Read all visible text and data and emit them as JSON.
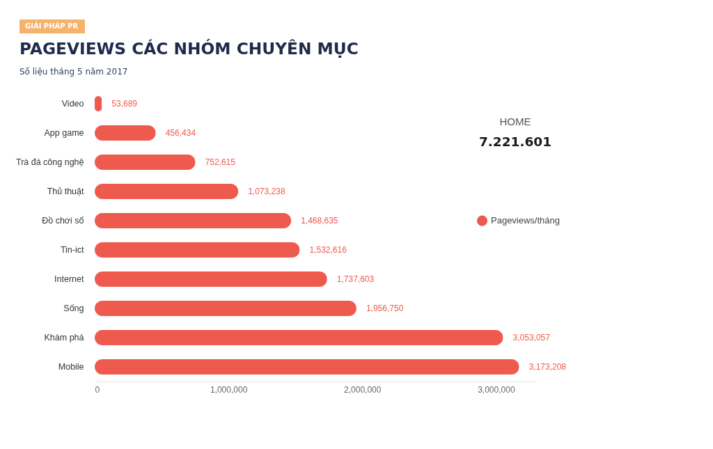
{
  "chart_data": {
    "type": "bar",
    "orientation": "horizontal",
    "title": "PAGEVIEWS  CÁC NHÓM CHUYÊN MỤC",
    "subtitle": "Số liệu tháng 5 năm 2017",
    "annotations": [
      "GIẢI PHÁP PR",
      "HOME",
      "7.221.601"
    ],
    "categories": [
      "Video",
      "App game",
      "Trà đá công nghệ",
      "Thủ thuật",
      "Đồ chơi số",
      "Tin-ict",
      "Internet",
      "Sống",
      "Khám phá",
      "Mobile"
    ],
    "series": [
      {
        "name": "Pageviews/tháng",
        "color": "#ef5a4f",
        "values": [
          53689,
          456434,
          752615,
          1073238,
          1468635,
          1532616,
          1737603,
          1956750,
          3053057,
          3173208
        ],
        "value_labels": [
          "53,689",
          "456,434",
          "752,615",
          "1,073,238",
          "1,468,635",
          "1,532,616",
          "1,737,603",
          "1,956,750",
          "3,053,057",
          "3,173,208"
        ]
      }
    ],
    "xlim": [
      0,
      3300000
    ],
    "xticks": [
      0,
      {
        "value": 1000000,
        "label": "1,000,000"
      },
      {
        "value": 2000000,
        "label": "2,000,000"
      },
      {
        "value": 3000000,
        "label": "3,000,000"
      }
    ],
    "legend": "right"
  }
}
